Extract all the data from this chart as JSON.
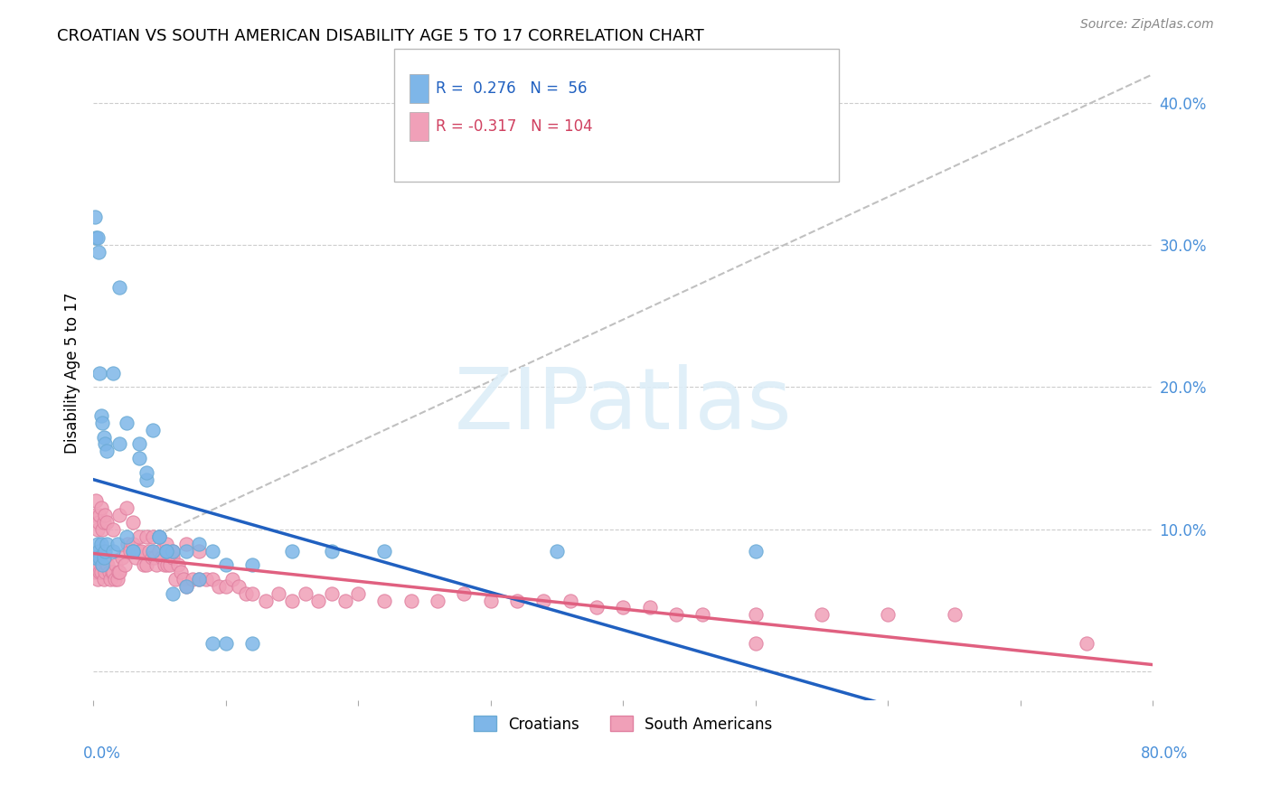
{
  "title": "CROATIAN VS SOUTH AMERICAN DISABILITY AGE 5 TO 17 CORRELATION CHART",
  "source": "Source: ZipAtlas.com",
  "ylabel": "Disability Age 5 to 17",
  "right_yticks": [
    0.0,
    0.1,
    0.2,
    0.3,
    0.4
  ],
  "right_yticklabels": [
    "",
    "10.0%",
    "20.0%",
    "30.0%",
    "40.0%"
  ],
  "croatian_color": "#7eb6e8",
  "croatian_edge": "#6aaad4",
  "south_american_color": "#f0a0b8",
  "south_american_edge": "#e080a0",
  "trend_croatian_color": "#2060c0",
  "trend_south_american_color": "#e06080",
  "diagonal_color": "#c0c0c0",
  "watermark_color": "#ddeef8",
  "R_croatian": 0.276,
  "N_croatian": 56,
  "R_south_american": -0.317,
  "N_south_american": 104,
  "xmin": 0.0,
  "xmax": 0.8,
  "ymin": -0.02,
  "ymax": 0.44,
  "croatian_x": [
    0.001,
    0.002,
    0.003,
    0.004,
    0.005,
    0.006,
    0.007,
    0.008,
    0.009,
    0.01,
    0.015,
    0.018,
    0.02,
    0.025,
    0.03,
    0.035,
    0.04,
    0.045,
    0.05,
    0.055,
    0.06,
    0.07,
    0.08,
    0.09,
    0.1,
    0.12,
    0.001,
    0.002,
    0.003,
    0.004,
    0.005,
    0.006,
    0.007,
    0.008,
    0.009,
    0.01,
    0.015,
    0.02,
    0.025,
    0.03,
    0.035,
    0.04,
    0.045,
    0.05,
    0.055,
    0.06,
    0.07,
    0.08,
    0.09,
    0.1,
    0.12,
    0.15,
    0.18,
    0.22,
    0.35,
    0.5
  ],
  "croatian_y": [
    0.08,
    0.08,
    0.09,
    0.085,
    0.08,
    0.09,
    0.075,
    0.08,
    0.085,
    0.09,
    0.085,
    0.09,
    0.16,
    0.175,
    0.085,
    0.16,
    0.135,
    0.17,
    0.095,
    0.085,
    0.085,
    0.085,
    0.09,
    0.085,
    0.075,
    0.075,
    0.32,
    0.305,
    0.305,
    0.295,
    0.21,
    0.18,
    0.175,
    0.165,
    0.16,
    0.155,
    0.21,
    0.27,
    0.095,
    0.085,
    0.15,
    0.14,
    0.085,
    0.095,
    0.085,
    0.055,
    0.06,
    0.065,
    0.02,
    0.02,
    0.02,
    0.085,
    0.085,
    0.085,
    0.085,
    0.085
  ],
  "south_american_x": [
    0.001,
    0.002,
    0.003,
    0.004,
    0.005,
    0.006,
    0.007,
    0.008,
    0.009,
    0.01,
    0.011,
    0.012,
    0.013,
    0.014,
    0.015,
    0.016,
    0.017,
    0.018,
    0.019,
    0.02,
    0.022,
    0.024,
    0.026,
    0.028,
    0.03,
    0.032,
    0.034,
    0.036,
    0.038,
    0.04,
    0.042,
    0.044,
    0.046,
    0.048,
    0.05,
    0.052,
    0.054,
    0.056,
    0.058,
    0.06,
    0.062,
    0.064,
    0.066,
    0.068,
    0.07,
    0.075,
    0.08,
    0.085,
    0.09,
    0.095,
    0.1,
    0.105,
    0.11,
    0.115,
    0.12,
    0.13,
    0.14,
    0.15,
    0.16,
    0.17,
    0.18,
    0.19,
    0.2,
    0.22,
    0.24,
    0.26,
    0.28,
    0.3,
    0.32,
    0.34,
    0.36,
    0.38,
    0.4,
    0.42,
    0.44,
    0.46,
    0.5,
    0.55,
    0.6,
    0.65,
    0.001,
    0.002,
    0.003,
    0.004,
    0.005,
    0.006,
    0.007,
    0.008,
    0.009,
    0.01,
    0.015,
    0.02,
    0.025,
    0.03,
    0.035,
    0.04,
    0.045,
    0.05,
    0.055,
    0.06,
    0.07,
    0.08,
    0.5,
    0.75
  ],
  "south_american_y": [
    0.07,
    0.075,
    0.065,
    0.08,
    0.07,
    0.07,
    0.075,
    0.065,
    0.07,
    0.075,
    0.075,
    0.07,
    0.065,
    0.07,
    0.07,
    0.065,
    0.075,
    0.065,
    0.07,
    0.07,
    0.08,
    0.075,
    0.09,
    0.085,
    0.09,
    0.08,
    0.085,
    0.085,
    0.075,
    0.075,
    0.085,
    0.08,
    0.08,
    0.075,
    0.085,
    0.08,
    0.075,
    0.075,
    0.075,
    0.08,
    0.065,
    0.075,
    0.07,
    0.065,
    0.06,
    0.065,
    0.065,
    0.065,
    0.065,
    0.06,
    0.06,
    0.065,
    0.06,
    0.055,
    0.055,
    0.05,
    0.055,
    0.05,
    0.055,
    0.05,
    0.055,
    0.05,
    0.055,
    0.05,
    0.05,
    0.05,
    0.055,
    0.05,
    0.05,
    0.05,
    0.05,
    0.045,
    0.045,
    0.045,
    0.04,
    0.04,
    0.04,
    0.04,
    0.04,
    0.04,
    0.11,
    0.12,
    0.1,
    0.105,
    0.11,
    0.115,
    0.1,
    0.105,
    0.11,
    0.105,
    0.1,
    0.11,
    0.115,
    0.105,
    0.095,
    0.095,
    0.095,
    0.095,
    0.09,
    0.085,
    0.09,
    0.085,
    0.02,
    0.02
  ]
}
